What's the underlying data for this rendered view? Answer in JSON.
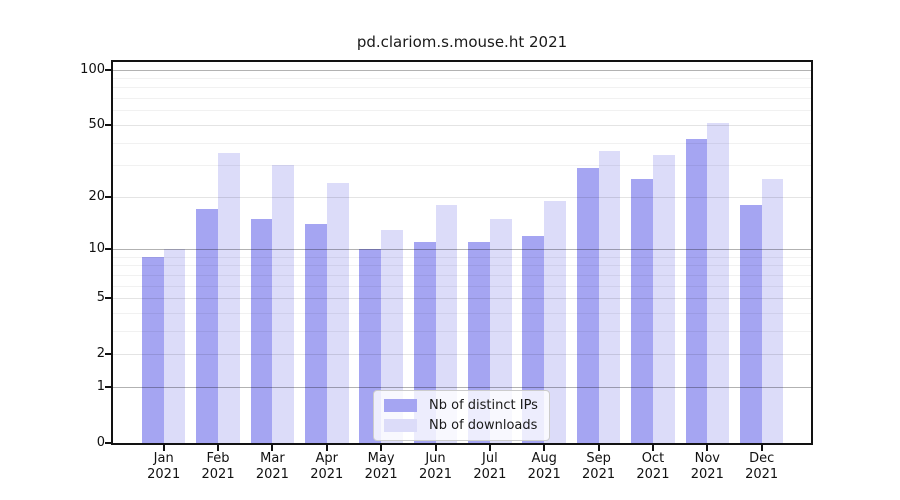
{
  "chart_data": {
    "type": "bar",
    "title": "pd.clariom.s.mouse.ht 2021",
    "categories": [
      "Jan 2021",
      "Feb 2021",
      "Mar 2021",
      "Apr 2021",
      "May 2021",
      "Jun 2021",
      "Jul 2021",
      "Aug 2021",
      "Sep 2021",
      "Oct 2021",
      "Nov 2021",
      "Dec 2021"
    ],
    "months": [
      "Jan",
      "Feb",
      "Mar",
      "Apr",
      "May",
      "Jun",
      "Jul",
      "Aug",
      "Sep",
      "Oct",
      "Nov",
      "Dec"
    ],
    "year_label": "2021",
    "series": [
      {
        "name": "Nb of distinct IPs",
        "color": "#a5a5f2",
        "values": [
          9,
          17,
          15,
          14,
          10,
          11,
          11,
          12,
          29,
          25,
          42,
          18
        ]
      },
      {
        "name": "Nb of downloads",
        "color": "#dcdcf9",
        "values": [
          10,
          35,
          30,
          24,
          13,
          18,
          15,
          19,
          36,
          34,
          51,
          25
        ]
      }
    ],
    "y_axis": {
      "scale": "log10(1+v)",
      "ticks": [
        0,
        1,
        2,
        5,
        10,
        20,
        50,
        100
      ],
      "decade_ticks": [
        1,
        10,
        100
      ],
      "minor_ticks": [
        3,
        4,
        6,
        7,
        8,
        9,
        30,
        40,
        60,
        70,
        80,
        90
      ],
      "ylim": [
        0,
        110
      ]
    },
    "xlabel": "",
    "ylabel": "",
    "grid": true,
    "legend_position": "lower center",
    "colors": {
      "bar_dark": "#a5a5f2",
      "bar_light": "#dcdcf9",
      "spine": "#121212",
      "text": "#1a1a1a"
    }
  }
}
